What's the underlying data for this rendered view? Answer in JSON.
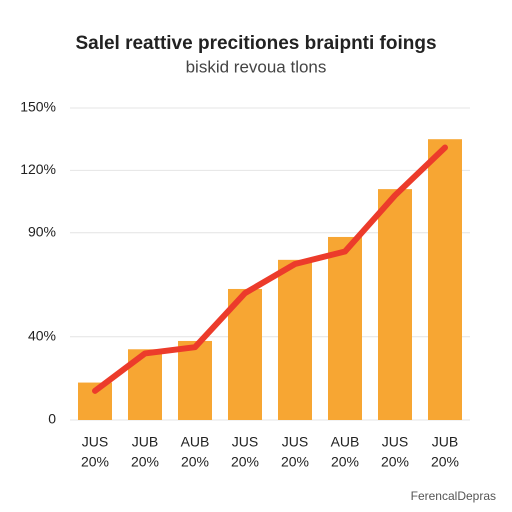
{
  "chart_data": {
    "type": "bar_line",
    "title": "Salel reattive precitiones braipnti foings",
    "subtitle": "biskid revoua tlons",
    "footer": "FerencalDepras",
    "categories": [
      "JUS",
      "JUB",
      "AUB",
      "JUS",
      "JUS",
      "AUB",
      "JUS",
      "JUB"
    ],
    "subcategories": [
      "20%",
      "20%",
      "20%",
      "20%",
      "20%",
      "20%",
      "20%",
      "20%"
    ],
    "series": [
      {
        "kind": "bar",
        "color": "#f7a633",
        "values": [
          18,
          34,
          38,
          63,
          77,
          88,
          111,
          135
        ]
      },
      {
        "kind": "line",
        "color": "#ec3b2b",
        "values": [
          14,
          32,
          35,
          61,
          75,
          81,
          108,
          131
        ]
      }
    ],
    "ylim": [
      0,
      150
    ],
    "yticks": [
      0,
      {
        "value": 40,
        "label": "40%"
      },
      {
        "value": 90,
        "label": "90%"
      },
      {
        "value": 120,
        "label": "120%"
      },
      {
        "value": 150,
        "label": "150%"
      }
    ],
    "grid": true
  }
}
